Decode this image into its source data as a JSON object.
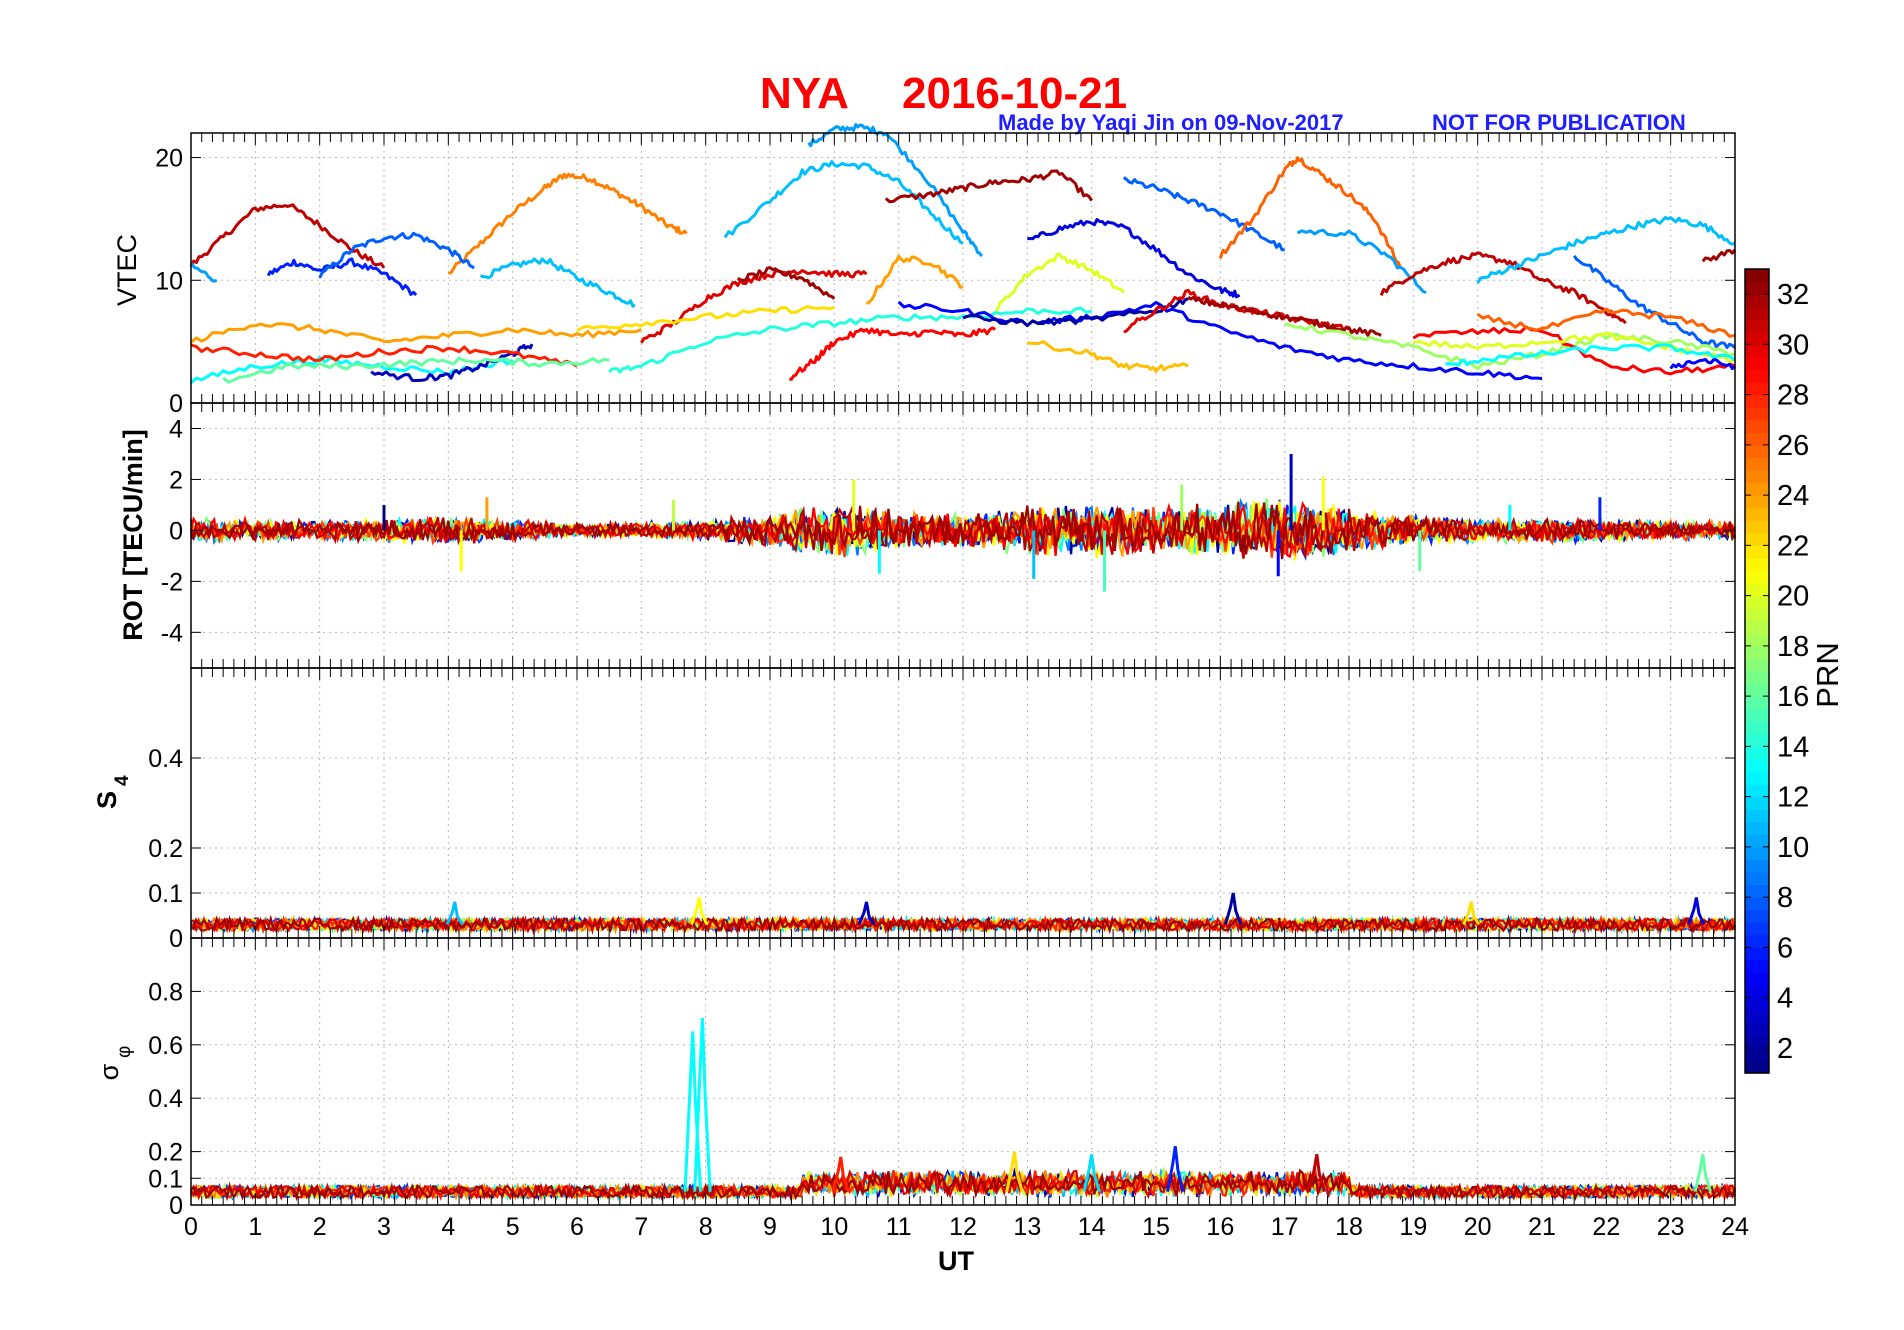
{
  "figure": {
    "title_station": "NYA",
    "title_date": "2016-10-21",
    "credit": "Made by Yaqi Jin on 09-Nov-2017",
    "notice": "NOT FOR PUBLICATION",
    "colors": {
      "title": "#ff0000",
      "credit": "#1e1eff"
    }
  },
  "chart_data": [
    {
      "type": "line",
      "panel": "vtec",
      "ylabel": "VTEC",
      "ylim": [
        0,
        22
      ],
      "yticks": [
        0,
        10,
        20
      ],
      "xlim": [
        0,
        24
      ],
      "grid": true,
      "series": [
        {
          "prn": 25,
          "x": [
            4.0,
            4.5,
            5.0,
            5.5,
            5.8,
            6.2,
            6.6,
            7.0,
            7.4,
            7.7
          ],
          "y": [
            10.5,
            13,
            15.5,
            17.5,
            18.6,
            18.3,
            17.2,
            16.0,
            14.5,
            13.8
          ]
        },
        {
          "prn": 31,
          "x": [
            0.0,
            0.5,
            1.0,
            1.5,
            2.0,
            2.5,
            3.0
          ],
          "y": [
            11.2,
            13.5,
            15.8,
            16.2,
            14.5,
            12.5,
            11.0
          ]
        },
        {
          "prn": 6,
          "x": [
            1.2,
            1.6,
            2.0,
            2.5,
            3.0,
            3.5
          ],
          "y": [
            10.5,
            11.5,
            10.8,
            11.5,
            10.5,
            8.8
          ]
        },
        {
          "prn": 8,
          "x": [
            2.0,
            2.5,
            3.0,
            3.5,
            4.0,
            4.4
          ],
          "y": [
            10.3,
            12.5,
            13.5,
            13.7,
            12.5,
            11.0
          ]
        },
        {
          "prn": 10,
          "x": [
            0.0,
            0.4
          ],
          "y": [
            11.2,
            10.0
          ]
        },
        {
          "prn": 11,
          "x": [
            4.5,
            5.0,
            5.5,
            6.0,
            6.5,
            6.9
          ],
          "y": [
            10.2,
            11.2,
            11.7,
            10.2,
            9.0,
            8.0
          ]
        },
        {
          "prn": 11,
          "x": [
            8.3,
            9.0,
            9.5,
            10.0,
            10.5,
            11.0,
            11.5,
            12.0
          ],
          "y": [
            13.5,
            16.5,
            18.8,
            19.5,
            19.3,
            18.0,
            15.5,
            13.0
          ]
        },
        {
          "prn": 10,
          "x": [
            9.6,
            10.0,
            10.4,
            10.8,
            11.4,
            12.0,
            12.3
          ],
          "y": [
            21.0,
            22.3,
            22.5,
            22.0,
            18.5,
            14.0,
            12.0
          ]
        },
        {
          "prn": 32,
          "x": [
            10.8,
            11.5,
            12.0,
            12.5,
            13.0,
            13.5,
            14.0
          ],
          "y": [
            16.5,
            17.0,
            17.5,
            18.0,
            18.2,
            18.8,
            16.5
          ]
        },
        {
          "prn": 8,
          "x": [
            14.5,
            15.0,
            15.5,
            16.0,
            16.5,
            17.0
          ],
          "y": [
            18.2,
            17.5,
            16.5,
            15.5,
            14.0,
            12.5
          ]
        },
        {
          "prn": 4,
          "x": [
            13.0,
            13.5,
            14.0,
            14.5,
            15.0,
            15.5,
            16.0,
            16.3
          ],
          "y": [
            13.2,
            14.2,
            14.8,
            14.3,
            12.5,
            10.5,
            9.2,
            8.8
          ]
        },
        {
          "prn": 26,
          "x": [
            16.0,
            16.5,
            17.0,
            17.2,
            17.6,
            18.0,
            18.4,
            18.8
          ],
          "y": [
            12.0,
            15.0,
            19.0,
            20.0,
            18.5,
            17.0,
            15.0,
            11.0
          ]
        },
        {
          "prn": 10,
          "x": [
            17.2,
            18.0,
            18.6,
            19.2
          ],
          "y": [
            14.0,
            13.8,
            12.0,
            9.0
          ]
        },
        {
          "prn": 31,
          "x": [
            18.5,
            19.0,
            19.5,
            20.0,
            20.5,
            21.0,
            21.5,
            22.0,
            22.3
          ],
          "y": [
            9.0,
            10.5,
            11.5,
            12.0,
            11.5,
            10.0,
            9.0,
            7.5,
            6.5
          ]
        },
        {
          "prn": 11,
          "x": [
            20.0,
            20.5,
            21.0,
            21.5,
            22.0,
            22.5,
            23.0,
            23.5,
            24.0
          ],
          "y": [
            10.0,
            11.0,
            12.0,
            13.0,
            13.8,
            14.5,
            15.0,
            14.5,
            13.0
          ]
        },
        {
          "prn": 32,
          "x": [
            23.5,
            24.0
          ],
          "y": [
            11.5,
            12.5
          ]
        },
        {
          "prn": 8,
          "x": [
            21.5,
            22.0,
            22.5,
            23.0,
            23.5,
            24.0
          ],
          "y": [
            12.0,
            10.0,
            8.0,
            6.5,
            5.0,
            4.5
          ]
        },
        {
          "prn": 24,
          "x": [
            10.5,
            11.0,
            11.5,
            12.0
          ],
          "y": [
            8.0,
            11.8,
            11.5,
            9.5
          ]
        },
        {
          "prn": 20,
          "x": [
            12.5,
            13.0,
            13.5,
            14.0,
            14.5
          ],
          "y": [
            7.5,
            10.5,
            12.0,
            10.8,
            9.0
          ]
        },
        {
          "prn": 30,
          "x": [
            7.0,
            7.5,
            8.0,
            8.5,
            9.0,
            9.5,
            10.0,
            10.5
          ],
          "y": [
            5.0,
            6.5,
            8.5,
            9.8,
            10.5,
            10.8,
            10.5,
            10.5
          ]
        },
        {
          "prn": 32,
          "x": [
            8.5,
            9.0,
            9.5,
            10.0
          ],
          "y": [
            10.0,
            10.8,
            10.2,
            8.5
          ]
        },
        {
          "prn": 29,
          "x": [
            9.3,
            9.7,
            10.0,
            10.5,
            11.0,
            11.5,
            12.0,
            12.5
          ],
          "y": [
            2.0,
            3.5,
            5.0,
            6.0,
            5.5,
            5.8,
            5.5,
            6.0
          ]
        },
        {
          "prn": 24,
          "x": [
            0.0,
            1.0,
            2.0,
            3.0,
            4.0,
            5.0,
            6.0,
            7.0
          ],
          "y": [
            5.0,
            6.5,
            6.0,
            5.0,
            5.5,
            6.0,
            5.5,
            6.0
          ]
        },
        {
          "prn": 13,
          "x": [
            0.0,
            1.0,
            2.0,
            3.0,
            4.0,
            5.0
          ],
          "y": [
            1.8,
            3.0,
            3.5,
            3.0,
            2.5,
            3.5
          ]
        },
        {
          "prn": 3,
          "x": [
            2.8,
            3.5,
            4.0,
            4.5,
            5.0,
            5.3
          ],
          "y": [
            2.5,
            2.0,
            2.2,
            3.0,
            4.0,
            4.8
          ]
        },
        {
          "prn": 28,
          "x": [
            0.0,
            1.0,
            2.0,
            3.0,
            4.0,
            5.0,
            6.0
          ],
          "y": [
            4.5,
            4.0,
            3.5,
            4.2,
            4.5,
            4.0,
            3.0
          ]
        },
        {
          "prn": 16,
          "x": [
            0.5,
            1.5,
            2.5,
            3.5,
            4.5,
            5.5,
            6.5
          ],
          "y": [
            1.8,
            3.0,
            3.0,
            3.3,
            3.5,
            3.2,
            3.5
          ]
        },
        {
          "prn": 22,
          "x": [
            6.0,
            7.0,
            8.0,
            9.0,
            10.0
          ],
          "y": [
            6.0,
            6.5,
            7.0,
            7.5,
            7.8
          ]
        },
        {
          "prn": 14,
          "x": [
            6.5,
            7.0,
            8.0,
            9.0,
            10.0,
            11.0,
            12.0,
            13.0,
            14.0
          ],
          "y": [
            2.5,
            3.0,
            5.0,
            6.0,
            6.5,
            7.0,
            7.0,
            7.5,
            7.5
          ]
        },
        {
          "prn": 5,
          "x": [
            11.0,
            12.0,
            13.0,
            14.0,
            15.0,
            16.0,
            17.0,
            18.0,
            19.0,
            20.0,
            21.0
          ],
          "y": [
            8.0,
            7.5,
            6.5,
            7.0,
            8.0,
            6.0,
            4.5,
            3.5,
            3.0,
            2.5,
            2.0
          ]
        },
        {
          "prn": 2,
          "x": [
            12.0,
            13.0,
            14.0,
            15.0,
            15.5
          ],
          "y": [
            7.0,
            6.5,
            6.8,
            7.5,
            8.5
          ]
        },
        {
          "prn": 23,
          "x": [
            13.0,
            14.0,
            14.5,
            15.0,
            15.5
          ],
          "y": [
            5.0,
            4.0,
            3.0,
            2.8,
            3.0
          ]
        },
        {
          "prn": 30,
          "x": [
            14.5,
            15.0,
            15.5,
            16.0,
            16.5,
            17.0,
            17.5,
            18.0
          ],
          "y": [
            6.0,
            7.5,
            9.0,
            8.0,
            7.5,
            7.0,
            6.5,
            6.0
          ]
        },
        {
          "prn": 32,
          "x": [
            15.5,
            16.0,
            16.5,
            17.0,
            17.5,
            18.0,
            18.5
          ],
          "y": [
            8.5,
            8.0,
            7.5,
            7.0,
            6.5,
            6.0,
            5.5
          ]
        },
        {
          "prn": 18,
          "x": [
            17.0,
            18.0,
            19.0,
            20.0,
            21.0,
            22.0,
            23.0,
            24.0
          ],
          "y": [
            6.5,
            5.5,
            4.5,
            3.0,
            4.0,
            5.5,
            5.0,
            4.0
          ]
        },
        {
          "prn": 29,
          "x": [
            19.0,
            20.0,
            21.0,
            22.0,
            23.0,
            24.0
          ],
          "y": [
            5.5,
            5.8,
            6.0,
            3.0,
            2.5,
            3.0
          ]
        },
        {
          "prn": 26,
          "x": [
            20.0,
            21.0,
            22.0,
            23.0,
            24.0
          ],
          "y": [
            7.0,
            6.0,
            7.5,
            7.0,
            5.5
          ]
        },
        {
          "prn": 20,
          "x": [
            19.0,
            20.0,
            21.0,
            22.0,
            23.0,
            24.0
          ],
          "y": [
            5.0,
            4.5,
            5.0,
            5.5,
            4.5,
            3.5
          ]
        },
        {
          "prn": 13,
          "x": [
            19.5,
            20.0,
            21.0,
            22.0,
            23.0,
            24.0
          ],
          "y": [
            3.0,
            3.5,
            4.0,
            4.5,
            4.5,
            3.5
          ]
        },
        {
          "prn": 5,
          "x": [
            23.0,
            23.5,
            24.0
          ],
          "y": [
            3.0,
            3.5,
            3.0
          ]
        }
      ]
    },
    {
      "type": "line",
      "panel": "rot",
      "ylabel": "ROT [TECU/min]",
      "ylim": [
        -5.4,
        5.0
      ],
      "yticks": [
        -4,
        -2,
        0,
        2,
        4
      ],
      "xlim": [
        0,
        24
      ],
      "grid": true,
      "envelope": {
        "description_hours": [
          0,
          2,
          4,
          6,
          8,
          9,
          10,
          11,
          12,
          13,
          14,
          15,
          16,
          17,
          18,
          19,
          20,
          21,
          22,
          23,
          24
        ],
        "amplitude": [
          0.5,
          0.4,
          0.6,
          0.3,
          0.4,
          0.7,
          1.2,
          0.8,
          0.7,
          1.1,
          1.2,
          1.0,
          1.1,
          1.4,
          1.0,
          0.6,
          0.5,
          0.5,
          0.5,
          0.4,
          0.4
        ]
      },
      "spikes": [
        {
          "x": 17.1,
          "y": 3.0
        },
        {
          "x": 10.3,
          "y": 2.0
        },
        {
          "x": 17.6,
          "y": 2.1
        },
        {
          "x": 15.4,
          "y": 1.8
        },
        {
          "x": 14.2,
          "y": -2.4
        },
        {
          "x": 13.1,
          "y": -1.9
        },
        {
          "x": 4.2,
          "y": -1.6
        },
        {
          "x": 10.7,
          "y": -1.7
        },
        {
          "x": 16.9,
          "y": -1.8
        },
        {
          "x": 4.6,
          "y": 1.3
        },
        {
          "x": 7.5,
          "y": 1.2
        },
        {
          "x": 21.9,
          "y": 1.3
        },
        {
          "x": 19.1,
          "y": -1.6
        },
        {
          "x": 3.0,
          "y": 1.0
        },
        {
          "x": 20.5,
          "y": 1.0
        }
      ]
    },
    {
      "type": "line",
      "panel": "s4",
      "ylabel": "S4",
      "ylim": [
        0,
        0.6
      ],
      "yticks": [
        0,
        0.1,
        0.2,
        0.4
      ],
      "xlim": [
        0,
        24
      ],
      "grid": true,
      "baseline": 0.03,
      "peaks": [
        {
          "x": 16.2,
          "y": 0.1
        },
        {
          "x": 23.4,
          "y": 0.09
        },
        {
          "x": 7.9,
          "y": 0.09
        },
        {
          "x": 4.1,
          "y": 0.08
        },
        {
          "x": 19.9,
          "y": 0.08
        },
        {
          "x": 10.5,
          "y": 0.08
        }
      ]
    },
    {
      "type": "line",
      "panel": "sigma_phi",
      "ylabel": "σφ",
      "ylim": [
        0,
        1.0
      ],
      "yticks": [
        0,
        0.1,
        0.2,
        0.4,
        0.6,
        0.8
      ],
      "xlim": [
        0,
        24
      ],
      "xticks": [
        0,
        1,
        2,
        3,
        4,
        5,
        6,
        7,
        8,
        9,
        10,
        11,
        12,
        13,
        14,
        15,
        16,
        17,
        18,
        19,
        20,
        21,
        22,
        23,
        24
      ],
      "xlabel": "UT",
      "grid": true,
      "baseline": 0.05,
      "peaks": [
        {
          "x": 7.8,
          "y": 0.65,
          "prn": 13
        },
        {
          "x": 7.95,
          "y": 0.7,
          "prn": 13
        },
        {
          "x": 15.3,
          "y": 0.22,
          "prn": 6
        },
        {
          "x": 12.8,
          "y": 0.2,
          "prn": 22
        },
        {
          "x": 17.5,
          "y": 0.19,
          "prn": 31
        },
        {
          "x": 10.1,
          "y": 0.18,
          "prn": 28
        },
        {
          "x": 23.5,
          "y": 0.19,
          "prn": 16
        },
        {
          "x": 14.0,
          "y": 0.19,
          "prn": 12
        }
      ]
    }
  ],
  "colorbar": {
    "label": "PRN",
    "min": 1,
    "max": 33,
    "ticks": [
      2,
      4,
      6,
      8,
      10,
      12,
      14,
      16,
      18,
      20,
      22,
      24,
      26,
      28,
      30,
      32
    ],
    "colormap": "jet"
  },
  "labels": {
    "vtec": "VTEC",
    "rot": "ROT [TECU/min]",
    "s4_main": "S",
    "s4_sub": "4",
    "sigma_main": "σ",
    "sigma_sub": "φ",
    "xlabel": "UT"
  }
}
